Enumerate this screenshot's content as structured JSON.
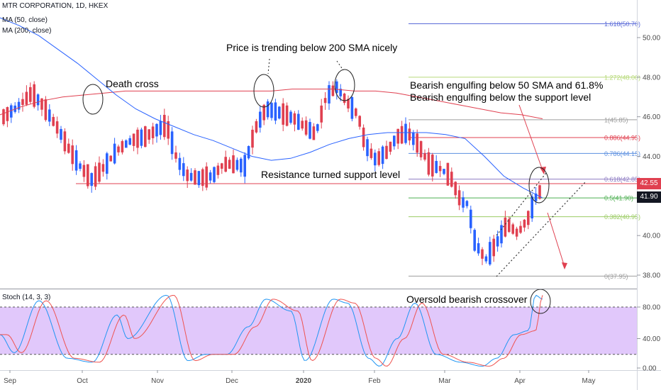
{
  "legend": {
    "title": "MTR CORPORATION, 1D, HKEX",
    "ma50": "MA (50, close)",
    "ma200": "MA (200, close)",
    "stoch": "Stoch (14, 3, 3)"
  },
  "price_tags": {
    "red": "42.55",
    "dark": "41.90"
  },
  "colors": {
    "up": "#2962ff",
    "down": "#e04050",
    "ma50": "#2962ff",
    "ma200": "#e04050",
    "stoch_k": "#2196f3",
    "stoch_d": "#ef5350",
    "band": "#e1c8fb"
  },
  "chart_data": [
    {
      "type": "candlestick",
      "title": "MTR CORPORATION, 1D, HKEX",
      "ylim": [
        37.0,
        51.2
      ],
      "price_ticks": [
        38.0,
        40.0,
        42.0,
        44.0,
        46.0,
        48.0,
        50.0
      ],
      "x_labels": [
        "Sep",
        "Oct",
        "Nov",
        "Dec",
        "2020",
        "Feb",
        "Mar",
        "Apr",
        "May"
      ],
      "x_labels_bold": [
        "2020"
      ],
      "series": [
        {
          "name": "MA (50, close)",
          "values": [
            51.0,
            50.6,
            50.1,
            49.4,
            48.7,
            47.9,
            47.1,
            46.4,
            45.9,
            45.5,
            45.1,
            44.8,
            44.4,
            44.0,
            43.8,
            43.9,
            44.2,
            44.6,
            44.9,
            45.1,
            45.2,
            45.2,
            45.2,
            45.1,
            44.9,
            44.0,
            43.0,
            42.4,
            41.9
          ]
        },
        {
          "name": "MA (200, close)",
          "values": [
            46.1,
            46.5,
            46.8,
            47.0,
            47.1,
            47.2,
            47.3,
            47.3,
            47.3,
            47.3,
            47.3,
            47.3,
            47.3,
            47.3,
            47.4,
            47.4,
            47.4,
            47.3,
            47.3,
            47.2,
            47.0,
            46.8,
            46.6,
            46.4,
            46.2,
            46.1,
            45.9
          ]
        }
      ],
      "fibonacci": [
        {
          "level": "1.618",
          "price": 50.7,
          "label": "1.618(50.70)",
          "color": "#5b6bd8"
        },
        {
          "level": "1.272",
          "price": 48.0,
          "label": "1.272(48.00)",
          "color": "#b7d97a"
        },
        {
          "level": "1",
          "price": 45.85,
          "label": "1(45.85)",
          "color": "#9e9e9e"
        },
        {
          "level": "0.886",
          "price": 44.95,
          "label": "0.886(44.95)",
          "color": "#e04050"
        },
        {
          "level": "0.786",
          "price": 44.15,
          "label": "0.786(44.15)",
          "color": "#5b8fe0"
        },
        {
          "level": "0.618",
          "price": 42.85,
          "label": "0.618(42.85)",
          "color": "#8e7cc3"
        },
        {
          "level": "0.5",
          "price": 41.9,
          "label": "0.5(41.90)",
          "color": "#4caf50"
        },
        {
          "level": "0.382",
          "price": 40.95,
          "label": "0.382(40.95)",
          "color": "#9ccc65"
        },
        {
          "level": "0",
          "price": 37.95,
          "label": "0(37.95)",
          "color": "#9e9e9e"
        }
      ],
      "support_level": 42.55,
      "last_prices": [
        42.55,
        41.9
      ],
      "annotations": [
        "Death cross",
        "Price is trending below  200 SMA nicely",
        "Bearish engulfing below 50 SMA and 61.8%",
        "Bearish engulfing below the support level",
        "Resistance turned support level"
      ]
    },
    {
      "type": "line",
      "title": "Stoch (14, 3, 3)",
      "ylim": [
        0,
        100
      ],
      "ticks": [
        "80.00",
        "40.00",
        "0.00"
      ],
      "band": [
        20,
        80
      ],
      "annotations": [
        "Oversold bearish crossover"
      ]
    }
  ]
}
